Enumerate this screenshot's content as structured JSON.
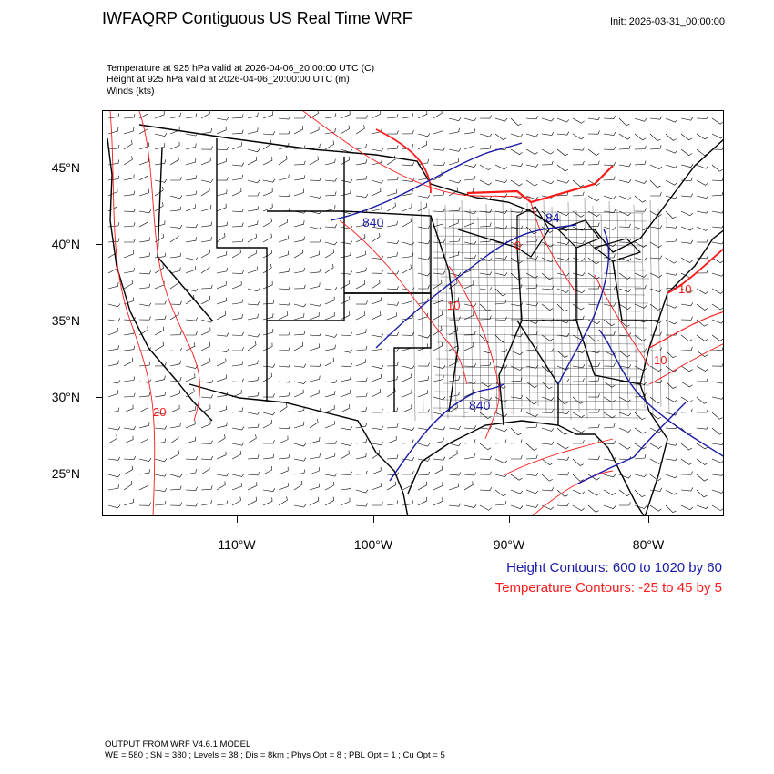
{
  "header": {
    "title": "IWFAQRP Contiguous US Real Time WRF",
    "init": "Init: 2026-03-31_00:00:00"
  },
  "fields": [
    "Temperature at 925 hPa valid at 2026-04-06_20:00:00 UTC   (C)",
    "Height at 925 hPa valid at 2026-04-06_20:00:00 UTC   (m)",
    "Winds   (kts)"
  ],
  "map": {
    "lat_labels": [
      "45°N",
      "40°N",
      "35°N",
      "30°N",
      "25°N"
    ],
    "lon_labels": [
      "110°W",
      "100°W",
      "90°W",
      "80°W"
    ],
    "height_labels": [
      "840",
      "84",
      "840"
    ],
    "temp_labels": [
      "10",
      "10",
      "0",
      "10",
      "20"
    ],
    "colors": {
      "height": "#1a1aa6",
      "temperature": "#ff1a1a",
      "borders": "#000000"
    }
  },
  "legend": {
    "height": "Height Contours: 600 to 1020 by 60",
    "temperature": "Temperature Contours: -25 to 45 by 5"
  },
  "footer": {
    "line1": "OUTPUT FROM WRF V4.6.1 MODEL",
    "line2": "WE = 580 ; SN = 380 ; Levels = 38 ; Dis = 8km ; Phys Opt = 8 ; PBL Opt = 1 ; Cu Opt = 5"
  }
}
